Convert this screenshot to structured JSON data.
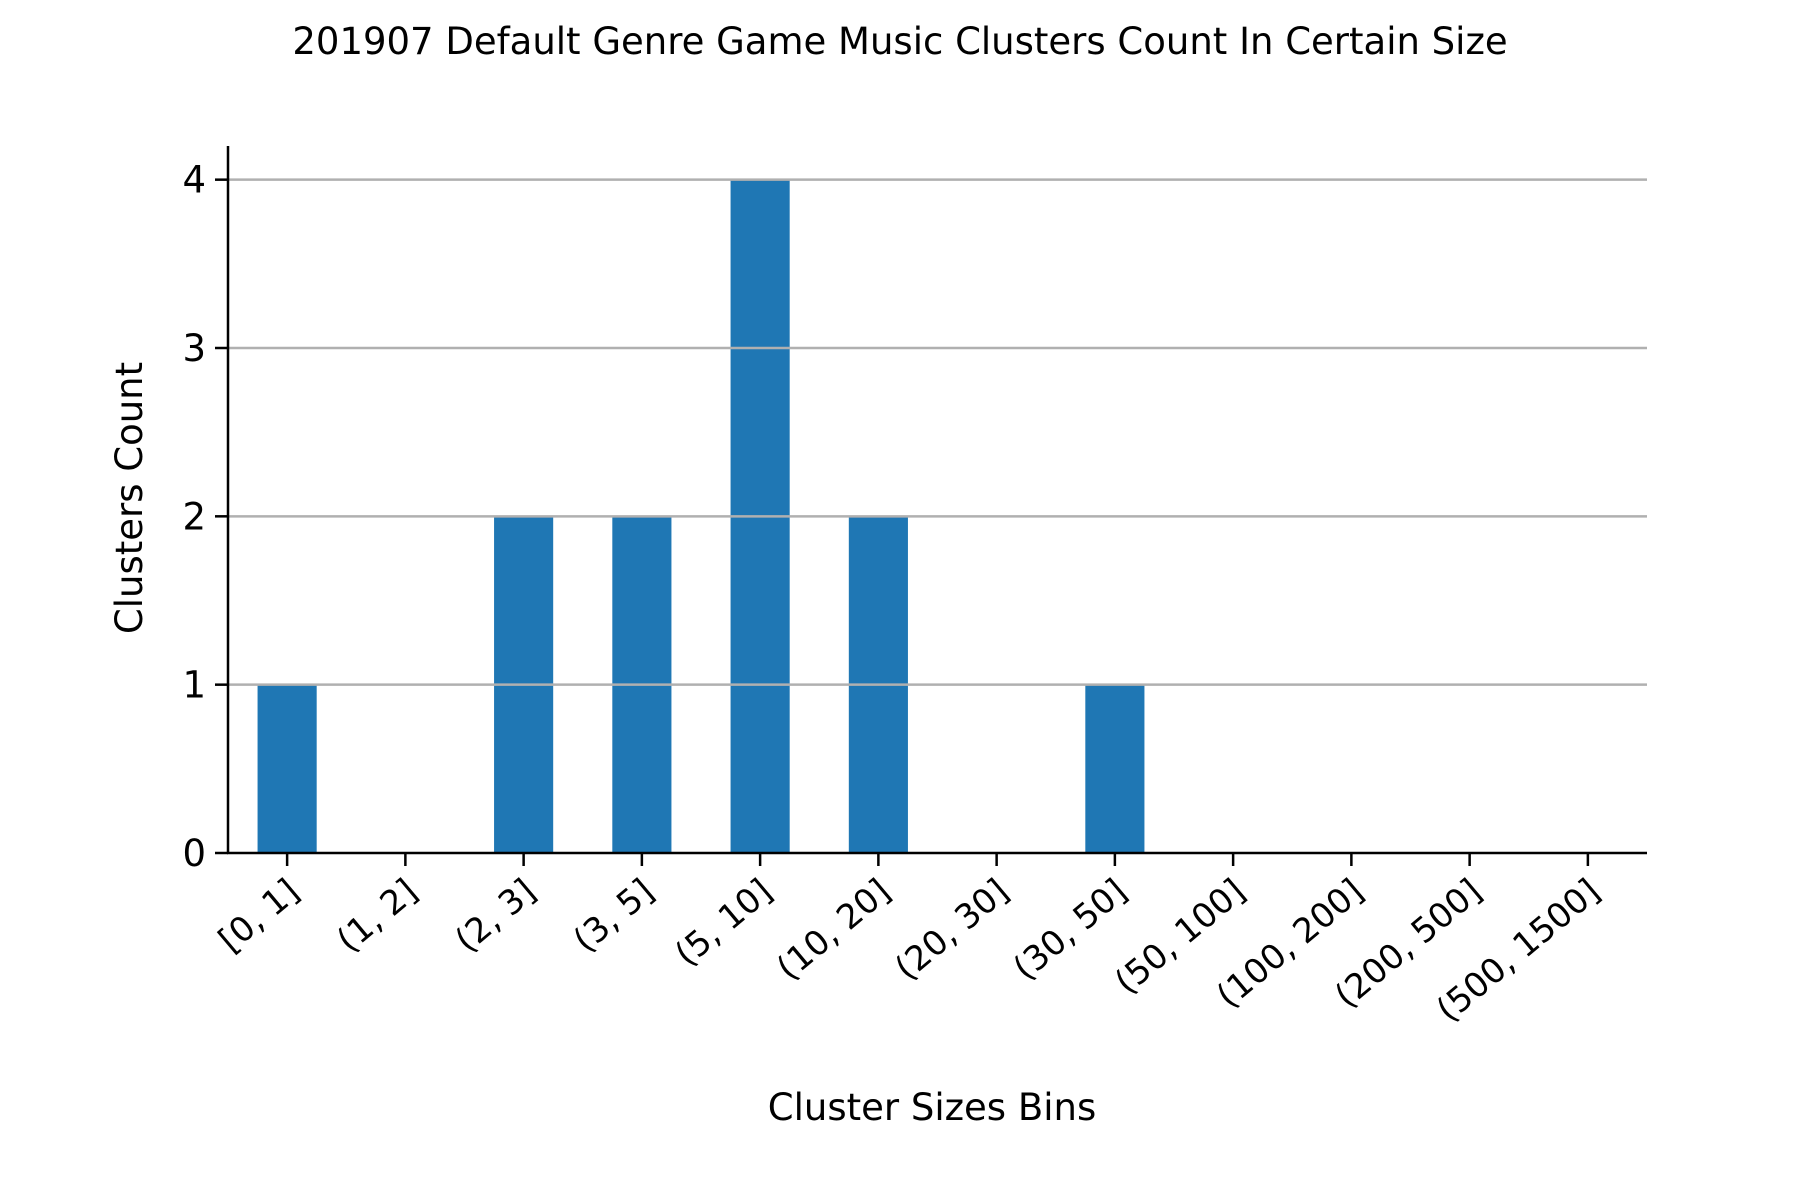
{
  "chart_data": {
    "type": "bar",
    "title": "201907 Default Genre Game Music Clusters Count In Certain Size",
    "xlabel": "Cluster Sizes Bins",
    "ylabel": "Clusters Count",
    "categories": [
      "[0, 1]",
      "(1, 2]",
      "(2, 3]",
      "(3, 5]",
      "(5, 10]",
      "(10, 20]",
      "(20, 30]",
      "(30, 50]",
      "(50, 100]",
      "(100, 200]",
      "(200, 500]",
      "(500, 1500]"
    ],
    "values": [
      1,
      0,
      2,
      2,
      4,
      2,
      0,
      1,
      0,
      0,
      0,
      0
    ],
    "ylim": [
      0,
      4.2
    ],
    "yticks": [
      0,
      1,
      2,
      3,
      4
    ],
    "ytick_labels": [
      "0",
      "1",
      "2",
      "3",
      "4"
    ],
    "grid": "horizontal",
    "legend": "none"
  },
  "colors": {
    "bar": "#1f77b4",
    "grid": "#b0b0b0",
    "axis": "#000000"
  }
}
